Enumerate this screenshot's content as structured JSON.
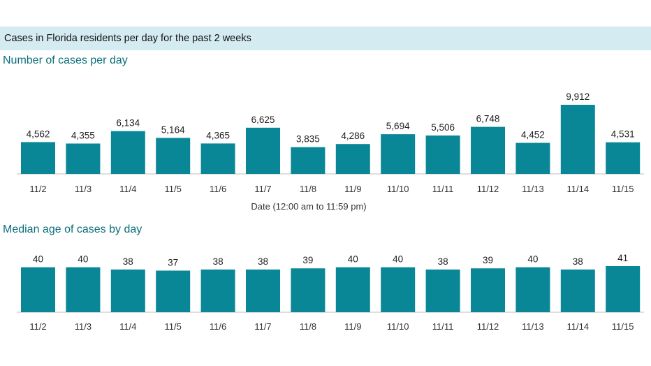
{
  "banner": {
    "title": "Cases in Florida residents per day for the past 2 weeks"
  },
  "chart_data": [
    {
      "type": "bar",
      "title": "Number of cases per day",
      "xlabel": "Date (12:00 am to 11:59 pm)",
      "ylabel": "",
      "categories": [
        "11/2",
        "11/3",
        "11/4",
        "11/5",
        "11/6",
        "11/7",
        "11/8",
        "11/9",
        "11/10",
        "11/11",
        "11/12",
        "11/13",
        "11/14",
        "11/15"
      ],
      "values": [
        4562,
        4355,
        6134,
        5164,
        4365,
        6625,
        3835,
        4286,
        5694,
        5506,
        6748,
        4452,
        9912,
        4531
      ],
      "value_labels": [
        "4,562",
        "4,355",
        "6,134",
        "5,164",
        "4,365",
        "6,625",
        "3,835",
        "4,286",
        "5,694",
        "5,506",
        "6,748",
        "4,452",
        "9,912",
        "4,531"
      ],
      "ylim": [
        0,
        9912
      ],
      "grid": false,
      "bar_color": "#0a8797"
    },
    {
      "type": "bar",
      "title": "Median age of cases by day",
      "xlabel": "",
      "ylabel": "",
      "categories": [
        "11/2",
        "11/3",
        "11/4",
        "11/5",
        "11/6",
        "11/7",
        "11/8",
        "11/9",
        "11/10",
        "11/11",
        "11/12",
        "11/13",
        "11/14",
        "11/15"
      ],
      "values": [
        40,
        40,
        38,
        37,
        38,
        38,
        39,
        40,
        40,
        38,
        39,
        40,
        38,
        41
      ],
      "value_labels": [
        "40",
        "40",
        "38",
        "37",
        "38",
        "38",
        "39",
        "40",
        "40",
        "38",
        "39",
        "40",
        "38",
        "41"
      ],
      "ylim": [
        0,
        41
      ],
      "grid": false,
      "bar_color": "#0a8797"
    }
  ]
}
